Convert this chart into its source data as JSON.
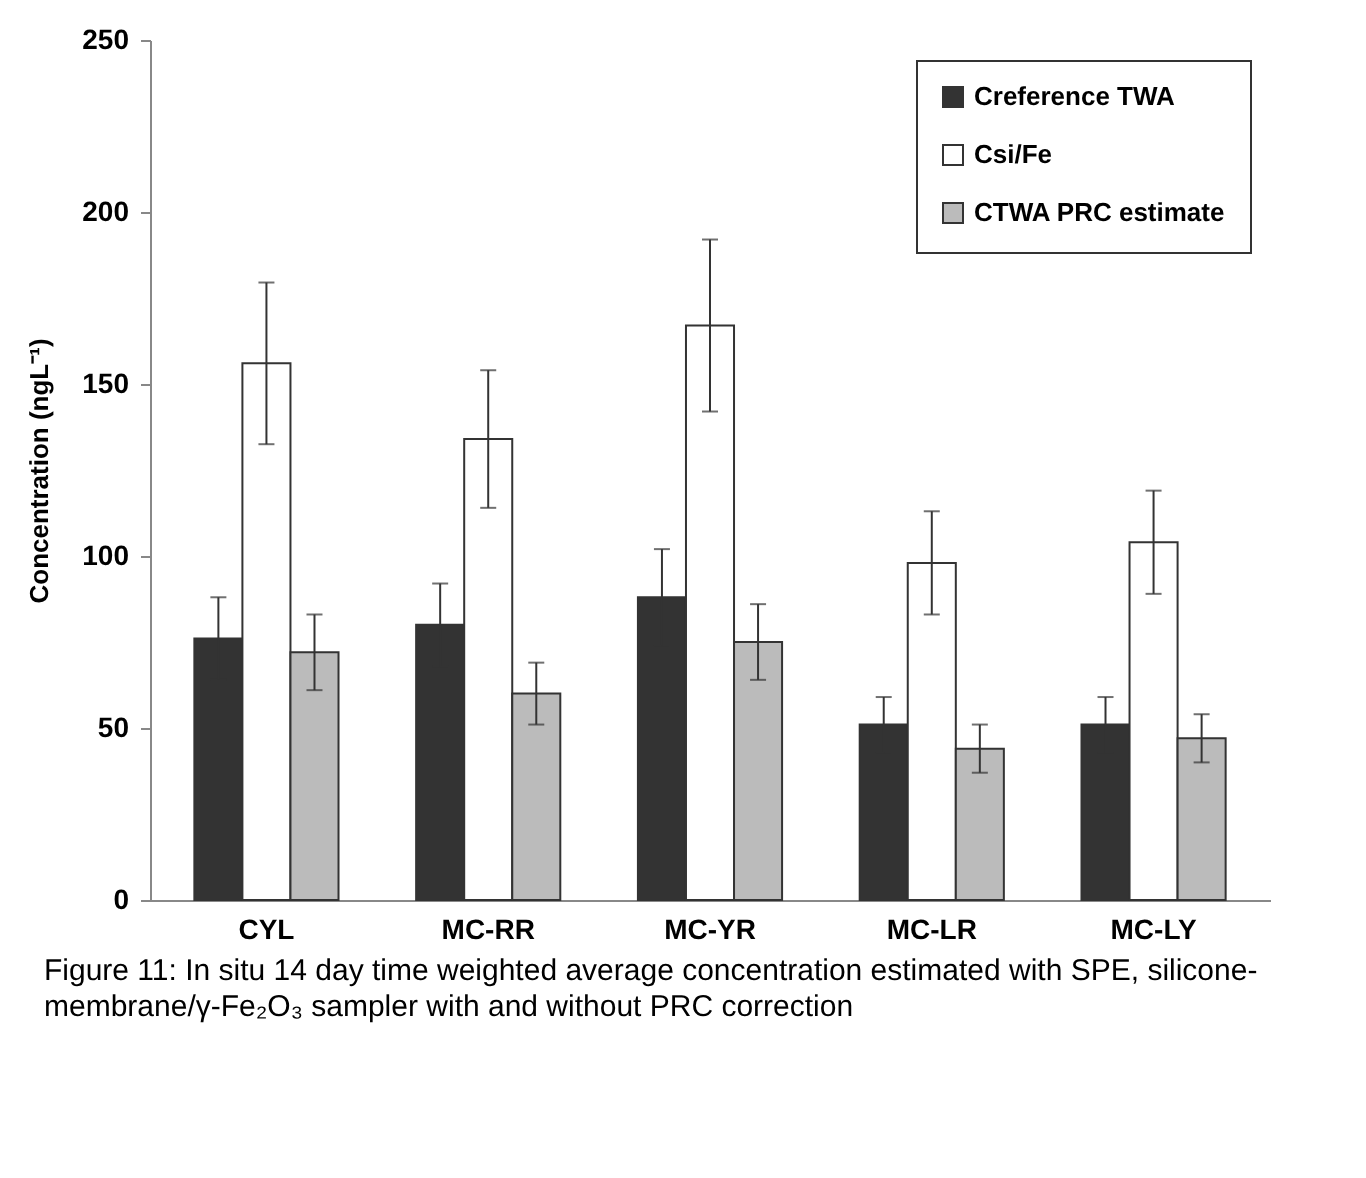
{
  "chart_data": {
    "type": "bar",
    "categories": [
      "CYL",
      "MC-RR",
      "MC-YR",
      "MC-LR",
      "MC-LY"
    ],
    "series": [
      {
        "name": "Creference TWA",
        "color": "#333333",
        "values": [
          76,
          80,
          88,
          51,
          51
        ],
        "errors": [
          12,
          12,
          14,
          8,
          8
        ]
      },
      {
        "name": "Csi/Fe",
        "color": "#ffffff",
        "values": [
          156,
          134,
          167,
          98,
          104
        ],
        "errors": [
          23.5,
          20,
          25,
          15,
          15
        ]
      },
      {
        "name": "CTWA PRC estimate",
        "color": "#bbbbbb",
        "values": [
          72,
          60,
          75,
          44,
          47
        ],
        "errors": [
          11,
          9,
          11,
          7,
          7
        ]
      }
    ],
    "ylabel": "Concentration (ngL⁻¹)",
    "ylim": [
      0,
      250
    ],
    "yticks": [
      0,
      50,
      100,
      150,
      200,
      250
    ],
    "grid": false,
    "legend": "top right",
    "annotations": [
      "Figure 11: In situ 14 day time weighted average concentration estimated with SPE, silicone-membrane/γ-Fe₂O₃ sampler with and without PRC correction"
    ]
  }
}
